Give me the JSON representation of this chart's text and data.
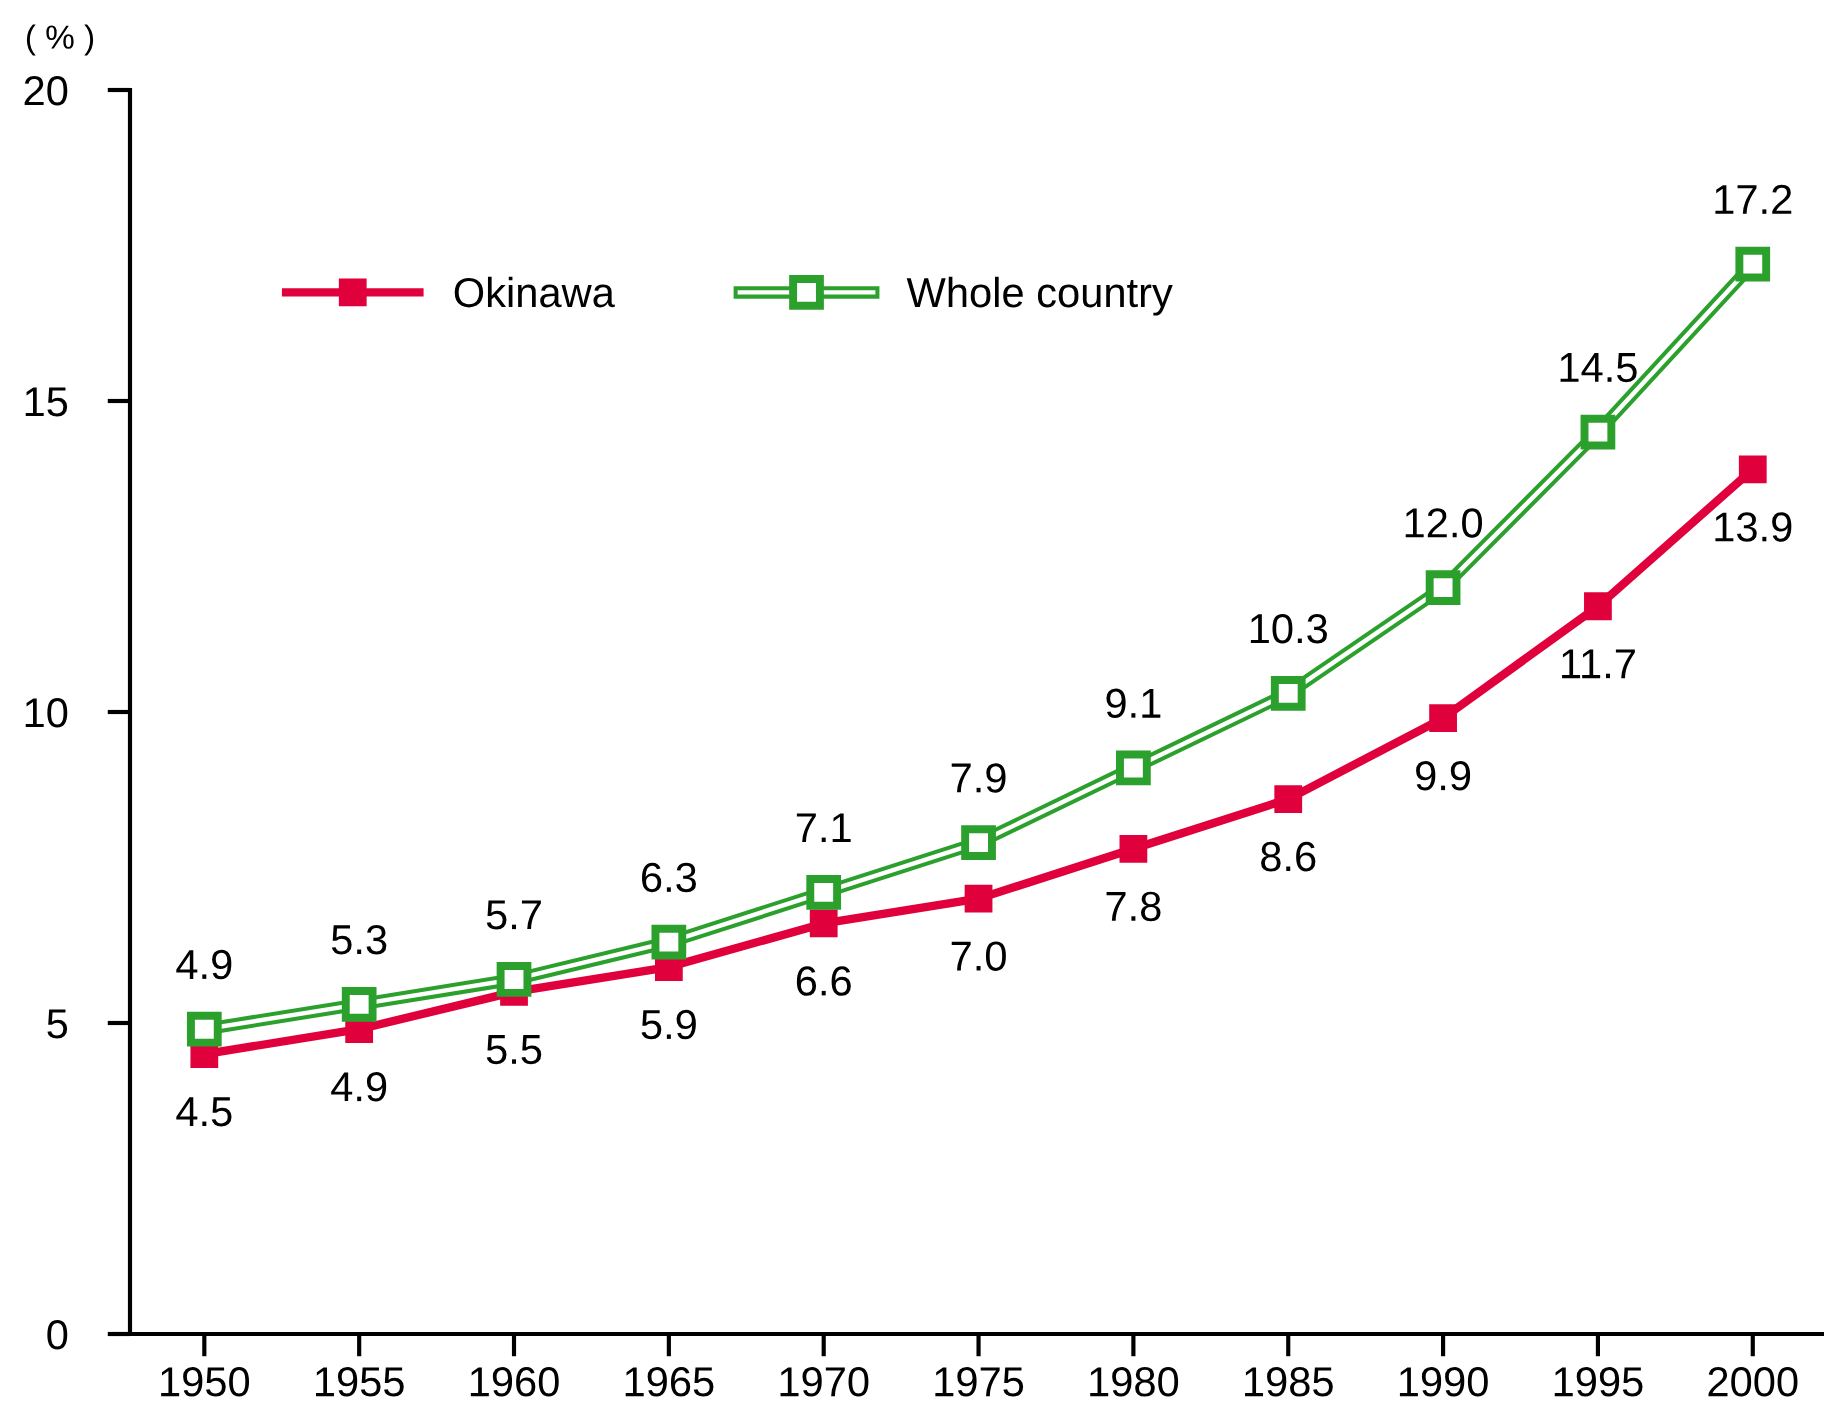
{
  "chart_data": {
    "type": "line",
    "ylabel": "( % )",
    "x": [
      1950,
      1955,
      1960,
      1965,
      1970,
      1975,
      1980,
      1985,
      1990,
      1995,
      2000
    ],
    "series": [
      {
        "name": "Okinawa",
        "color": "#e0003c",
        "marker": "square",
        "values": [
          4.5,
          4.9,
          5.5,
          5.9,
          6.6,
          7.0,
          7.8,
          8.6,
          9.9,
          11.7,
          13.9
        ],
        "value_labels": [
          "4.5",
          "4.9",
          "5.5",
          "5.9",
          "6.6",
          "7.0",
          "7.8",
          "8.6",
          "9.9",
          "11.7",
          "13.9"
        ]
      },
      {
        "name": "Whole country",
        "color": "#2ca02c",
        "marker": "square",
        "values": [
          4.9,
          5.3,
          5.7,
          6.3,
          7.1,
          7.9,
          9.1,
          10.3,
          12.0,
          14.5,
          17.2
        ],
        "value_labels": [
          "4.9",
          "5.3",
          "5.7",
          "6.3",
          "7.1",
          "7.9",
          "9.1",
          "10.3",
          "12.0",
          "14.5",
          "17.2"
        ]
      }
    ],
    "xlim": [
      1947.6,
      2002.3
    ],
    "xticks": [
      1950,
      1955,
      1960,
      1965,
      1970,
      1975,
      1980,
      1985,
      1990,
      1995,
      2000
    ],
    "ylim": [
      0,
      20
    ],
    "yticks": [
      0,
      5,
      10,
      15,
      20
    ],
    "legend": "top left",
    "grid": false
  }
}
